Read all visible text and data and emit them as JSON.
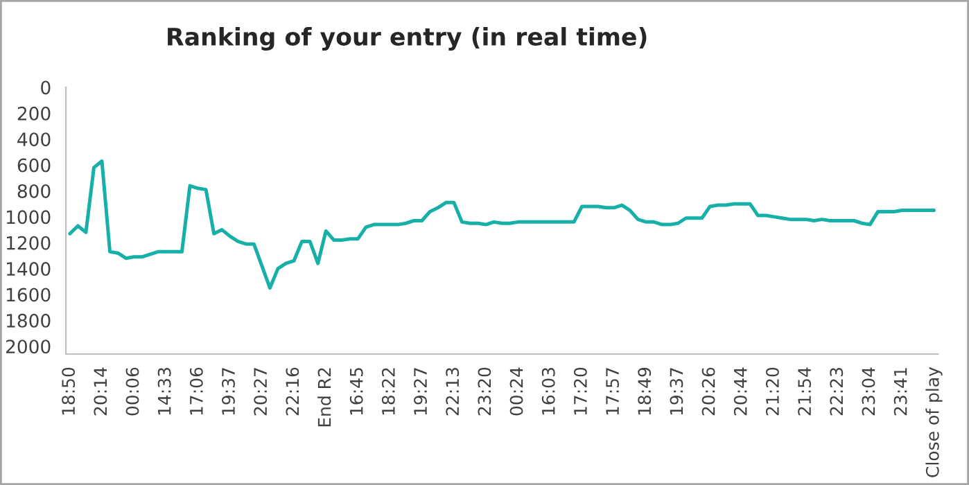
{
  "chart_data": {
    "type": "line",
    "title": "Ranking of your entry (in real time)",
    "categories": [
      "18:50",
      null,
      null,
      null,
      "20:14",
      null,
      null,
      null,
      "00:06",
      null,
      null,
      null,
      "14:33",
      null,
      null,
      null,
      "17:06",
      null,
      null,
      null,
      "19:37",
      null,
      null,
      null,
      "20:27",
      null,
      null,
      null,
      "22:16",
      null,
      null,
      null,
      "End R2",
      null,
      null,
      null,
      "16:45",
      null,
      null,
      null,
      "18:22",
      null,
      null,
      null,
      "19:27",
      null,
      null,
      null,
      "22:13",
      null,
      null,
      null,
      "23:20",
      null,
      null,
      null,
      "00:24",
      null,
      null,
      null,
      "16:03",
      null,
      null,
      null,
      "17:20",
      null,
      null,
      null,
      "17:57",
      null,
      null,
      null,
      "18:49",
      null,
      null,
      null,
      "19:37",
      null,
      null,
      null,
      "20:26",
      null,
      null,
      null,
      "20:44",
      null,
      null,
      null,
      "21:20",
      null,
      null,
      null,
      "21:54",
      null,
      null,
      null,
      "22:23",
      null,
      null,
      null,
      "23:04",
      null,
      null,
      null,
      "23:41",
      null,
      null,
      null,
      "Close of play"
    ],
    "series": [
      {
        "color": "#17b0a8",
        "values": [
          1130,
          1070,
          1120,
          620,
          570,
          1270,
          1280,
          1320,
          1310,
          1310,
          1290,
          1270,
          1270,
          1270,
          1270,
          760,
          780,
          790,
          1130,
          1100,
          1150,
          1190,
          1210,
          1210,
          1380,
          1550,
          1400,
          1360,
          1340,
          1190,
          1190,
          1360,
          1110,
          1180,
          1180,
          1170,
          1170,
          1080,
          1060,
          1060,
          1060,
          1060,
          1050,
          1030,
          1030,
          960,
          930,
          890,
          890,
          1040,
          1050,
          1050,
          1060,
          1040,
          1050,
          1050,
          1040,
          1040,
          1040,
          1040,
          1040,
          1040,
          1040,
          1040,
          920,
          920,
          920,
          930,
          930,
          910,
          950,
          1020,
          1040,
          1040,
          1060,
          1060,
          1050,
          1010,
          1010,
          1010,
          920,
          910,
          910,
          900,
          900,
          900,
          990,
          990,
          1000,
          1010,
          1020,
          1020,
          1020,
          1030,
          1020,
          1030,
          1030,
          1030,
          1030,
          1050,
          1060,
          960,
          960,
          960,
          950,
          950,
          950,
          950,
          950
        ]
      }
    ],
    "ylim": [
      2060,
      0
    ],
    "yticks": [
      0,
      200,
      400,
      600,
      800,
      1000,
      1200,
      1400,
      1600,
      1800,
      2000
    ],
    "grid": false,
    "marker": "none",
    "line_style": "solid"
  }
}
